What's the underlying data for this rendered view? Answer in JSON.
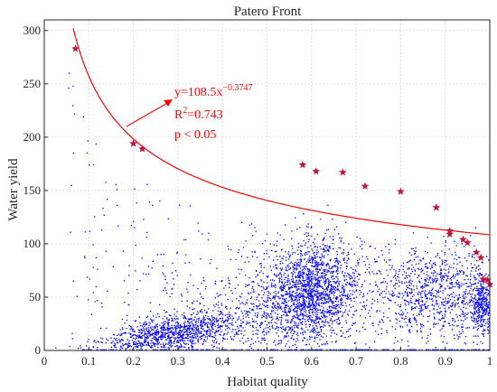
{
  "chart_data": {
    "type": "scatter",
    "title": "Patero Front",
    "xlabel": "Habitat quality",
    "ylabel": "Water yield",
    "xlim": [
      0,
      1
    ],
    "ylim": [
      0,
      310
    ],
    "x_ticks": [
      "0",
      "0.1",
      "0.2",
      "0.3",
      "0.4",
      "0.5",
      "0.6",
      "0.7",
      "0.8",
      "0.9",
      "1"
    ],
    "y_ticks": [
      "0",
      "50",
      "100",
      "150",
      "200",
      "250",
      "300"
    ],
    "grid": true,
    "colors": {
      "scatter": "#0000ff",
      "front": "#ff0000",
      "pareto_marker": "#c0143c"
    },
    "pareto_points": [
      {
        "x": 0.07,
        "y": 283
      },
      {
        "x": 0.2,
        "y": 194
      },
      {
        "x": 0.22,
        "y": 189
      },
      {
        "x": 0.58,
        "y": 174
      },
      {
        "x": 0.61,
        "y": 168
      },
      {
        "x": 0.67,
        "y": 167
      },
      {
        "x": 0.72,
        "y": 154
      },
      {
        "x": 0.8,
        "y": 149
      },
      {
        "x": 0.88,
        "y": 134
      },
      {
        "x": 0.91,
        "y": 112
      },
      {
        "x": 0.91,
        "y": 109
      },
      {
        "x": 0.94,
        "y": 104
      },
      {
        "x": 0.95,
        "y": 101
      },
      {
        "x": 0.97,
        "y": 92
      },
      {
        "x": 0.98,
        "y": 87
      },
      {
        "x": 0.985,
        "y": 67
      },
      {
        "x": 0.995,
        "y": 66
      },
      {
        "x": 1.0,
        "y": 62
      }
    ],
    "fit": {
      "a": 108.5,
      "b": -0.3747,
      "equation_prefix": "y=108.5x",
      "equation_exponent": "−0.3747",
      "r2_prefix": "R",
      "r2_sup": "2",
      "r2_value": "=0.743",
      "p_text": "p < 0.05"
    }
  }
}
